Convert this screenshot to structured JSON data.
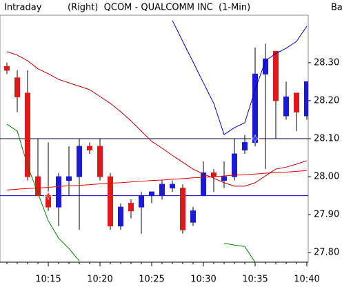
{
  "chart_data": {
    "type": "candlestick",
    "header_left": "Intraday",
    "title": "(Right)  QCOM - QUALCOMM INC  (1-Min)",
    "header_right": "Ba",
    "categories": [
      null,
      null,
      null,
      null,
      "10:15",
      null,
      null,
      null,
      null,
      "10:20",
      null,
      null,
      null,
      null,
      "10:25",
      null,
      null,
      null,
      null,
      "10:30",
      null,
      null,
      null,
      null,
      "10:35",
      null,
      null,
      null,
      null,
      "10:40"
    ],
    "open": [
      28.29,
      28.26,
      28.22,
      28.0,
      27.95,
      27.92,
      27.99,
      28.0,
      28.08,
      28.08,
      28.0,
      27.87,
      27.93,
      27.92,
      27.95,
      27.95,
      27.97,
      27.97,
      27.88,
      27.95,
      28.01,
      27.99,
      28.0,
      28.07,
      28.09,
      28.27,
      28.33,
      28.16,
      28.22,
      28.16
    ],
    "high": [
      28.3,
      28.28,
      28.28,
      28.1,
      28.09,
      28.01,
      28.08,
      28.1,
      28.09,
      28.1,
      28.01,
      27.93,
      27.94,
      27.96,
      27.96,
      27.99,
      27.99,
      27.98,
      27.92,
      28.04,
      28.02,
      28.04,
      28.1,
      28.11,
      28.34,
      28.35,
      28.33,
      28.25,
      28.22,
      28.25
    ],
    "low": [
      28.27,
      28.17,
      27.99,
      27.95,
      27.91,
      27.87,
      27.95,
      27.86,
      28.06,
      27.99,
      27.86,
      27.86,
      27.89,
      27.85,
      27.93,
      27.94,
      27.96,
      27.85,
      27.87,
      27.95,
      27.96,
      27.97,
      27.99,
      28.06,
      28.08,
      28.02,
      28.1,
      28.15,
      28.12,
      28.15
    ],
    "close": [
      28.28,
      28.21,
      28.0,
      27.95,
      27.92,
      28.0,
      28.0,
      28.08,
      28.07,
      28.0,
      27.87,
      27.92,
      27.91,
      27.95,
      27.96,
      27.98,
      27.98,
      27.86,
      27.91,
      28.01,
      28.0,
      28.0,
      28.06,
      28.09,
      28.27,
      28.31,
      28.2,
      28.21,
      28.17,
      28.25
    ],
    "up_color": "#1a1ad8",
    "down_color": "#e01818",
    "series": [
      {
        "color": "#b00000",
        "values": [
          28.329,
          28.32,
          28.305,
          28.284,
          28.271,
          28.256,
          28.247,
          28.238,
          28.229,
          28.211,
          28.193,
          28.171,
          28.147,
          28.12,
          28.093,
          28.075,
          28.056,
          28.038,
          28.02,
          28.007,
          27.996,
          27.984,
          27.975,
          27.975,
          27.984,
          28.002,
          28.02,
          28.025,
          28.033,
          28.042
        ]
      },
      {
        "color": "#e00000",
        "values": [
          27.965,
          27.967,
          27.969,
          27.97,
          27.972,
          27.974,
          27.976,
          27.977,
          27.979,
          27.981,
          27.983,
          27.984,
          27.986,
          27.988,
          27.99,
          27.991,
          27.993,
          27.995,
          27.997,
          27.998,
          28.0,
          28.002,
          28.004,
          28.005,
          28.007,
          28.009,
          28.011,
          28.012,
          28.014,
          28.016
        ]
      },
      {
        "color": "#008000",
        "values": [
          28.138,
          28.12,
          28.029,
          27.956,
          27.884,
          27.838,
          27.811,
          27.778,
          null,
          null,
          null,
          null,
          null,
          null,
          null,
          null,
          null,
          null,
          null,
          null,
          null,
          27.825,
          27.82,
          27.816,
          27.775,
          null,
          null,
          null,
          null,
          null
        ]
      },
      {
        "color": "#0000cc",
        "values": [
          null,
          null,
          null,
          null,
          null,
          null,
          null,
          null,
          null,
          null,
          null,
          null,
          null,
          null,
          null,
          null,
          28.411,
          28.356,
          28.302,
          28.247,
          28.193,
          28.111,
          28.129,
          28.142,
          28.229,
          28.305,
          28.324,
          28.338,
          28.356,
          28.396
        ]
      }
    ],
    "hlines": [
      {
        "value": 28.1,
        "color": "#000040"
      },
      {
        "value": 27.95,
        "color": "#0000cc"
      }
    ],
    "signals": [
      {
        "index": 4,
        "value": 27.95,
        "color": "#ff2020"
      },
      {
        "index": 24,
        "value": 28.1,
        "color": "#2040ff"
      }
    ],
    "ylim": [
      27.775,
      28.425
    ],
    "yticks": [
      {
        "value": 27.8,
        "label": "27.80"
      },
      {
        "value": 27.9,
        "label": "27.90"
      },
      {
        "value": 28.0,
        "label": "28.00"
      },
      {
        "value": 28.1,
        "label": "28.10"
      },
      {
        "value": 28.2,
        "label": "28.20"
      },
      {
        "value": 28.3,
        "label": "28.30"
      }
    ]
  }
}
